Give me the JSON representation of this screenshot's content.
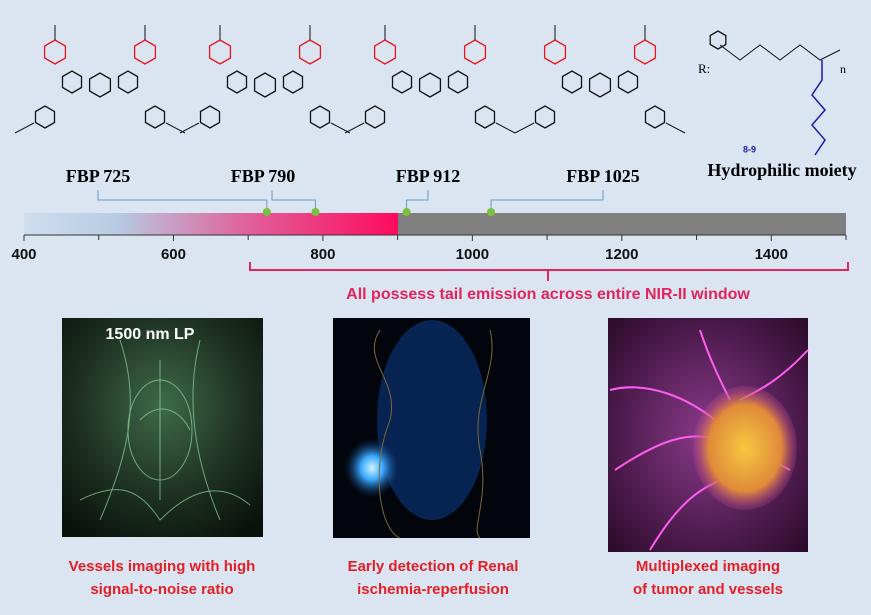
{
  "dyes": [
    {
      "label": "FBP 725",
      "wavelength": 725
    },
    {
      "label": "FBP 790",
      "wavelength": 790
    },
    {
      "label": "FBP  912",
      "wavelength": 912
    },
    {
      "label": "FBP 1025",
      "wavelength": 1025
    }
  ],
  "moiety": {
    "r_label": "R:",
    "label": "Hydrophilic moiety",
    "repeat": "n",
    "range": "8-9"
  },
  "scale": {
    "lim": [
      400,
      1500
    ],
    "ticks": [
      400,
      600,
      800,
      1000,
      1200,
      1400
    ],
    "minor_ticks": [
      500,
      700,
      900,
      1100,
      1300,
      1500
    ]
  },
  "bracket_text": "All possess tail emission across entire NIR-II window",
  "panels": [
    {
      "overlay": "1500 nm LP",
      "caption": [
        "Vessels imaging with high",
        "signal-to-noise ratio"
      ]
    },
    {
      "caption": [
        "Early detection of Renal",
        "ischemia-reperfusion"
      ]
    },
    {
      "caption": [
        "Multiplexed imaging",
        "of tumor and vessels"
      ]
    }
  ]
}
